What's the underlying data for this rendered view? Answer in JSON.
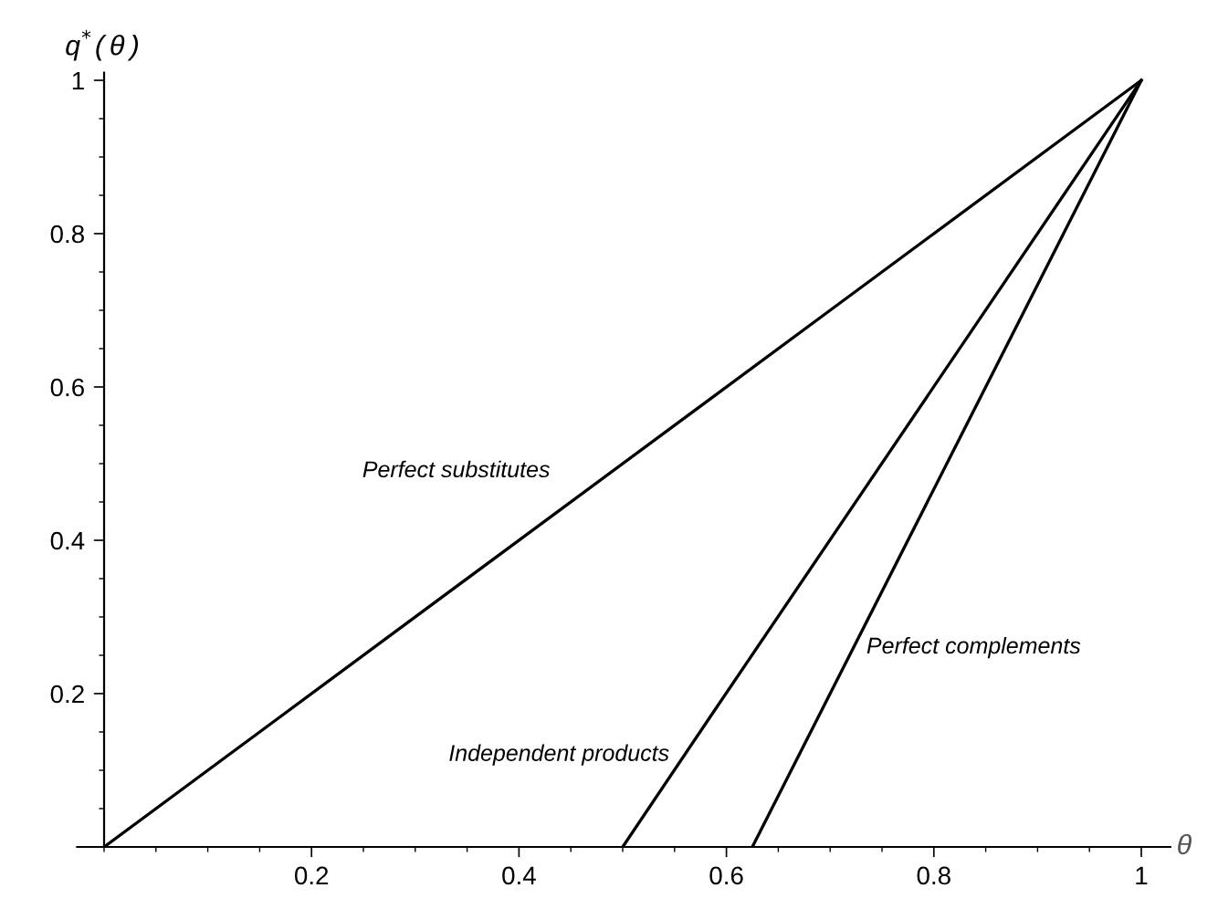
{
  "chart_data": {
    "type": "line",
    "xlabel": "θ",
    "ylabel": "q$^{*}$(θ)",
    "xlim": [
      -0.026,
      1.028
    ],
    "ylim": [
      0,
      1.01
    ],
    "xticks": [
      0.2,
      0.4,
      0.6,
      0.8,
      1
    ],
    "yticks": [
      0.2,
      0.4,
      0.6,
      0.8,
      1
    ],
    "grid": false,
    "legend": false,
    "marker": "none",
    "line_style": "solid",
    "series": [
      {
        "name": "Perfect substitutes",
        "color": "#000000",
        "x": [
          0,
          0.167,
          0.708,
          1
        ],
        "values": [
          0,
          0.167,
          0.708,
          1
        ]
      },
      {
        "name": "Independent products",
        "color": "#000000",
        "x": [
          0.5,
          0.583,
          1
        ],
        "values": [
          0,
          0.167,
          1
        ]
      },
      {
        "name": "Perfect complements",
        "color": "#000000",
        "x": [
          0.625,
          1
        ],
        "values": [
          0,
          1
        ]
      }
    ]
  }
}
